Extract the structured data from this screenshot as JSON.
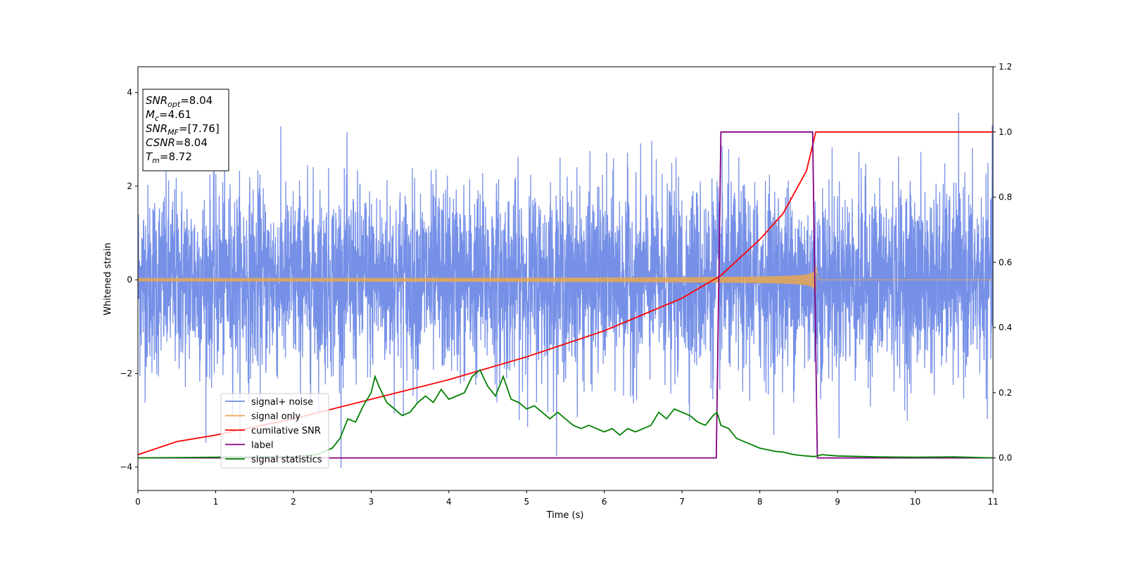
{
  "chart_data": {
    "type": "line",
    "title": "",
    "xlabel": "Time (s)",
    "ylabel_left": "Whitened strain",
    "ylabel_right": "",
    "xlim": [
      0,
      11
    ],
    "ylim_left": [
      -4.5,
      4.55
    ],
    "ylim_right": [
      -0.1,
      1.2
    ],
    "xticks": [
      "0",
      "1",
      "2",
      "3",
      "4",
      "5",
      "6",
      "7",
      "8",
      "9",
      "10",
      "11"
    ],
    "yticks_left": [
      "4",
      "2",
      "0",
      "−2",
      "−4"
    ],
    "yticks_right": [
      "1.2",
      "1.0",
      "0.8",
      "0.6",
      "0.4",
      "0.2",
      "0.0"
    ],
    "grid": false,
    "legend_position": "lower-left",
    "annotation_box": {
      "lines": [
        {
          "sym": "SNR",
          "sub": "opt",
          "rest": "=8.04"
        },
        {
          "sym": "M",
          "sub": "c",
          "rest": "=4.61"
        },
        {
          "sym": "SNR",
          "sub": "MF",
          "rest": "=[7.76]"
        },
        {
          "sym": "CSNR",
          "sub": "",
          "rest": "=8.04"
        },
        {
          "sym": "T",
          "sub": "m",
          "rest": "=8.72"
        }
      ]
    },
    "signal_window": {
      "start": 0,
      "merger": 8.72,
      "amplitude_end": 0.55
    },
    "series": [
      {
        "name": "signal+ noise",
        "color": "#6f8ae6",
        "axis": "left",
        "kind": "noise",
        "amplitude_sd": 1.0
      },
      {
        "name": "signal only",
        "color": "#e8a850",
        "axis": "left",
        "kind": "chirp"
      },
      {
        "name": "cumilative SNR",
        "color": "#ff0000",
        "axis": "right",
        "x": [
          0,
          0.5,
          1,
          2,
          3,
          4,
          5,
          6,
          7,
          7.5,
          8,
          8.3,
          8.6,
          8.72,
          11
        ],
        "y": [
          0.01,
          0.05,
          0.07,
          0.12,
          0.18,
          0.24,
          0.31,
          0.39,
          0.49,
          0.56,
          0.67,
          0.75,
          0.88,
          1.0,
          1.0
        ]
      },
      {
        "name": "label",
        "color": "#800080",
        "axis": "right",
        "x": [
          0,
          7.44,
          7.5,
          8.68,
          8.74,
          11
        ],
        "y": [
          0,
          0,
          1,
          1,
          0,
          0
        ]
      },
      {
        "name": "signal statistics",
        "color": "#008000",
        "axis": "right",
        "x": [
          0,
          1.0,
          2.0,
          2.3,
          2.5,
          2.6,
          2.7,
          2.8,
          2.9,
          3.0,
          3.05,
          3.1,
          3.2,
          3.3,
          3.4,
          3.5,
          3.6,
          3.7,
          3.8,
          3.9,
          4.0,
          4.1,
          4.2,
          4.3,
          4.4,
          4.5,
          4.6,
          4.7,
          4.8,
          4.9,
          5.0,
          5.1,
          5.2,
          5.3,
          5.4,
          5.5,
          5.6,
          5.7,
          5.8,
          5.9,
          6.0,
          6.1,
          6.2,
          6.3,
          6.4,
          6.5,
          6.6,
          6.7,
          6.8,
          6.9,
          7.0,
          7.1,
          7.2,
          7.3,
          7.4,
          7.45,
          7.5,
          7.6,
          7.7,
          7.8,
          7.9,
          8.0,
          8.1,
          8.2,
          8.3,
          8.4,
          8.5,
          8.6,
          8.7,
          8.8,
          9.0,
          9.5,
          10.0,
          10.5,
          11.0
        ],
        "y": [
          0.0,
          0.002,
          0.004,
          0.01,
          0.03,
          0.06,
          0.12,
          0.11,
          0.16,
          0.2,
          0.25,
          0.22,
          0.17,
          0.15,
          0.13,
          0.14,
          0.17,
          0.19,
          0.17,
          0.21,
          0.18,
          0.19,
          0.2,
          0.25,
          0.27,
          0.22,
          0.19,
          0.25,
          0.18,
          0.17,
          0.15,
          0.16,
          0.14,
          0.12,
          0.14,
          0.12,
          0.1,
          0.09,
          0.1,
          0.09,
          0.08,
          0.09,
          0.07,
          0.09,
          0.08,
          0.09,
          0.1,
          0.14,
          0.12,
          0.15,
          0.14,
          0.13,
          0.11,
          0.1,
          0.13,
          0.14,
          0.1,
          0.09,
          0.06,
          0.05,
          0.04,
          0.03,
          0.025,
          0.02,
          0.018,
          0.012,
          0.008,
          0.006,
          0.004,
          0.01,
          0.006,
          0.003,
          0.002,
          0.003,
          0.0
        ]
      }
    ]
  }
}
